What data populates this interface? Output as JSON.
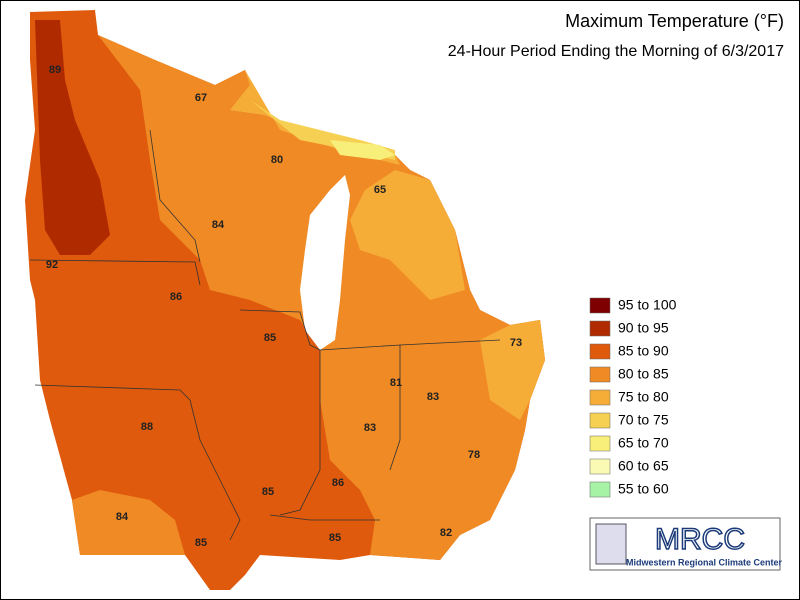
{
  "header": {
    "title": "Maximum Temperature (°F)",
    "subtitle": "24-Hour Period Ending the Morning of 6/3/2017"
  },
  "legend": [
    {
      "label": "95 to 100",
      "color": "#7f0000"
    },
    {
      "label": "90 to 95",
      "color": "#b02a00"
    },
    {
      "label": "85 to 90",
      "color": "#df5a0c"
    },
    {
      "label": "80 to 85",
      "color": "#ef8a25"
    },
    {
      "label": "75 to 80",
      "color": "#f6ad38"
    },
    {
      "label": "70 to 75",
      "color": "#f6d052"
    },
    {
      "label": "65 to 70",
      "color": "#f8ef7a"
    },
    {
      "label": "60 to 65",
      "color": "#fafab4"
    },
    {
      "label": "55 to 60",
      "color": "#a6f3a6"
    }
  ],
  "station_labels": [
    89,
    67,
    80,
    65,
    84,
    92,
    86,
    85,
    73,
    81,
    83,
    88,
    83,
    78,
    86,
    85,
    84,
    85,
    85,
    82
  ],
  "logo": {
    "name": "MRCC",
    "caption": "Midwestern Regional Climate Center"
  }
}
